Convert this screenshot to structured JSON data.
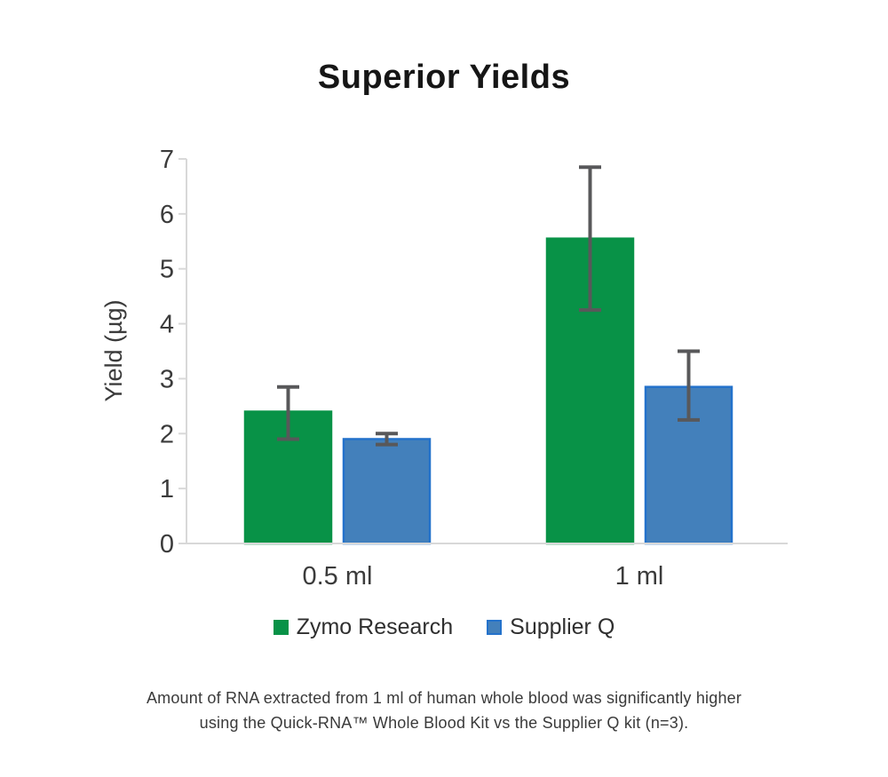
{
  "page": {
    "background": "#ffffff"
  },
  "chart_data": {
    "type": "bar",
    "title": "Superior Yields",
    "ylabel": "Yield (µg)",
    "ylim": [
      0,
      7
    ],
    "ytick_step": 1,
    "grid": false,
    "legend_position": "bottom",
    "categories": [
      "0.5 ml",
      "1 ml"
    ],
    "series": [
      {
        "name": "Zymo Research",
        "color": "#089247",
        "border_color": "#089247",
        "values": [
          2.4,
          5.55
        ],
        "error_low": [
          1.9,
          4.25
        ],
        "error_high": [
          2.85,
          6.85
        ]
      },
      {
        "name": "Supplier Q",
        "color": "#4380bb",
        "border_color": "#2472cb",
        "values": [
          1.9,
          2.85
        ],
        "error_low": [
          1.8,
          2.25
        ],
        "error_high": [
          2.0,
          3.5
        ]
      }
    ],
    "error_bar_color": "#58585a",
    "axis_color": "#d8d8d8",
    "tick_label_color": "#3b3b3b"
  },
  "caption": {
    "line1": "Amount of RNA extracted from 1 ml of human whole blood was significantly higher",
    "line2": "using the Quick-RNA™ Whole Blood Kit vs the Supplier Q kit (n=3)."
  }
}
